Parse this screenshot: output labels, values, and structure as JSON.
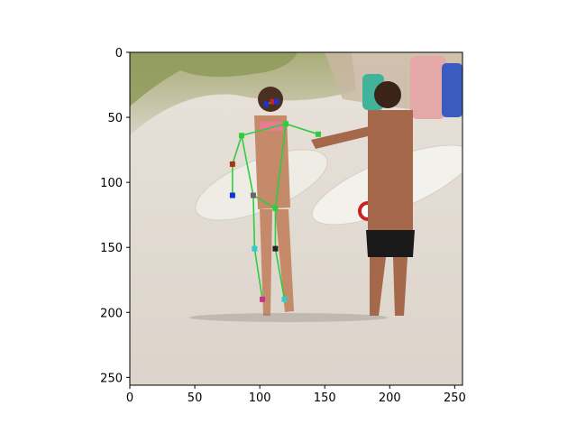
{
  "plot": {
    "x_ticks": [
      0,
      50,
      100,
      150,
      200,
      250
    ],
    "y_ticks": [
      0,
      50,
      100,
      150,
      200,
      250
    ],
    "x_range": [
      0,
      256
    ],
    "y_range": [
      0,
      256
    ],
    "y_inverted": true
  },
  "skeleton": {
    "line_color": "#2ecc40",
    "joints": [
      {
        "x": 110,
        "y": 38,
        "color": "#cc2222"
      },
      {
        "x": 105,
        "y": 40,
        "color": "#2233cc"
      },
      {
        "x": 113,
        "y": 38,
        "color": "#2233cc"
      },
      {
        "x": 86,
        "y": 64,
        "color": "#2ecc40"
      },
      {
        "x": 120,
        "y": 55,
        "color": "#2ecc40"
      },
      {
        "x": 79,
        "y": 86,
        "color": "#aa3311"
      },
      {
        "x": 145,
        "y": 63,
        "color": "#2ecc40"
      },
      {
        "x": 79,
        "y": 110,
        "color": "#1133dd"
      },
      {
        "x": 95,
        "y": 110,
        "color": "#666666"
      },
      {
        "x": 112,
        "y": 120,
        "color": "#2ecc40"
      },
      {
        "x": 96,
        "y": 151,
        "color": "#33cccc"
      },
      {
        "x": 112,
        "y": 151,
        "color": "#222222"
      },
      {
        "x": 102,
        "y": 190,
        "color": "#cc3388"
      },
      {
        "x": 119,
        "y": 190,
        "color": "#33cccc"
      }
    ],
    "bones": [
      [
        1,
        0
      ],
      [
        0,
        2
      ],
      [
        3,
        4
      ],
      [
        3,
        5
      ],
      [
        4,
        6
      ],
      [
        5,
        7
      ],
      [
        3,
        8
      ],
      [
        4,
        9
      ],
      [
        8,
        9
      ],
      [
        8,
        10
      ],
      [
        9,
        11
      ],
      [
        10,
        12
      ],
      [
        11,
        13
      ]
    ]
  }
}
